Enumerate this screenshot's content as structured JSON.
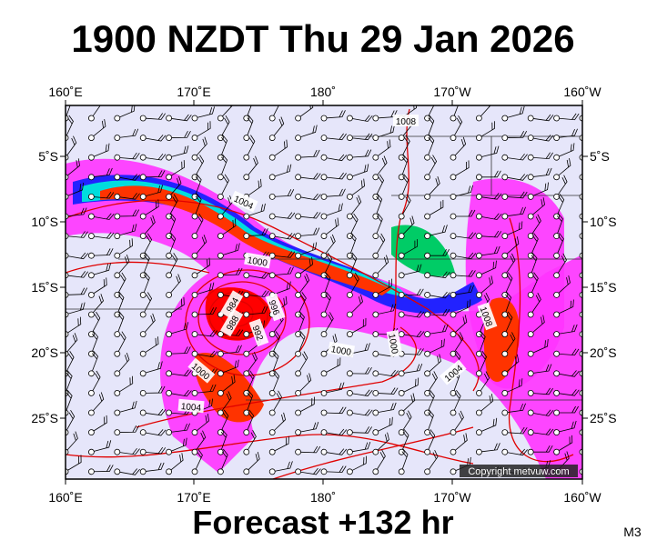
{
  "header": {
    "title": "1900 NZDT Thu 29 Jan 2026"
  },
  "map": {
    "top_labels": [
      "160˚E",
      "170˚E",
      "180˚",
      "170˚W",
      "160˚W"
    ],
    "bottom_labels": [
      "160˚E",
      "170˚E",
      "180˚",
      "170˚W",
      "160˚W"
    ],
    "left_labels": [
      "5˚S",
      "10˚S",
      "15˚S",
      "20˚S",
      "25˚S"
    ],
    "right_labels": [
      "5˚S",
      "10˚S",
      "15˚S",
      "20˚S",
      "25˚S"
    ],
    "contour_labels": [
      "1008",
      "1004",
      "1000",
      "984",
      "988",
      "996",
      "992",
      "1000",
      "1000",
      "1008",
      "1004",
      "1000",
      "1004"
    ],
    "copyright": "Copyright metvuw.com"
  },
  "footer": {
    "forecast": "Forecast +132 hr",
    "model": "M3"
  }
}
